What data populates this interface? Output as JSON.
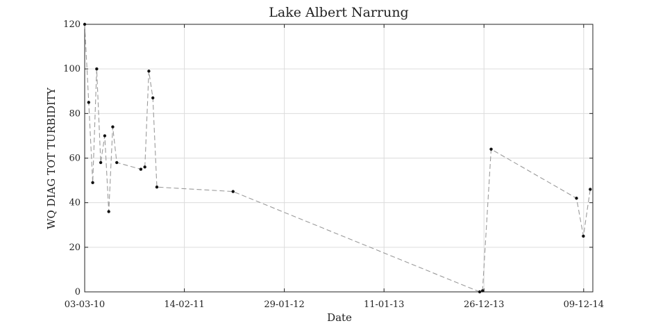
{
  "chart_data": {
    "type": "line",
    "title": "Lake Albert Narrung",
    "xlabel": "Date",
    "ylabel": "WQ DIAG TOT TURBIDITY",
    "ylim": [
      0,
      120
    ],
    "xlim": [
      "2010-03-03",
      "2015-01-10"
    ],
    "grid": true,
    "legend": "none",
    "line_style": "dashed",
    "line_color": "#9a9a9a",
    "marker_color": "#111111",
    "yticks": [
      0,
      20,
      40,
      60,
      80,
      100,
      120
    ],
    "xticks": [
      {
        "date": "2010-03-03",
        "label": "03-03-10"
      },
      {
        "date": "2011-02-14",
        "label": "14-02-11"
      },
      {
        "date": "2012-01-29",
        "label": "29-01-12"
      },
      {
        "date": "2013-01-11",
        "label": "11-01-13"
      },
      {
        "date": "2013-12-26",
        "label": "26-12-13"
      },
      {
        "date": "2014-12-09",
        "label": "09-12-14"
      }
    ],
    "series": [
      {
        "points": [
          {
            "x": "2010-03-03",
            "y": 120
          },
          {
            "x": "2010-03-17",
            "y": 85
          },
          {
            "x": "2010-03-31",
            "y": 49
          },
          {
            "x": "2010-04-14",
            "y": 100
          },
          {
            "x": "2010-04-28",
            "y": 58
          },
          {
            "x": "2010-05-12",
            "y": 70
          },
          {
            "x": "2010-05-26",
            "y": 36
          },
          {
            "x": "2010-06-09",
            "y": 74
          },
          {
            "x": "2010-06-23",
            "y": 58
          },
          {
            "x": "2010-09-15",
            "y": 55
          },
          {
            "x": "2010-09-29",
            "y": 56
          },
          {
            "x": "2010-10-13",
            "y": 99
          },
          {
            "x": "2010-10-27",
            "y": 87
          },
          {
            "x": "2010-11-10",
            "y": 47
          },
          {
            "x": "2011-08-03",
            "y": 45
          },
          {
            "x": "2013-12-11",
            "y": 0
          },
          {
            "x": "2013-12-21",
            "y": 0.5
          },
          {
            "x": "2014-01-20",
            "y": 64
          },
          {
            "x": "2014-11-14",
            "y": 42
          },
          {
            "x": "2014-12-08",
            "y": 25
          },
          {
            "x": "2015-01-01",
            "y": 46
          }
        ]
      }
    ]
  }
}
